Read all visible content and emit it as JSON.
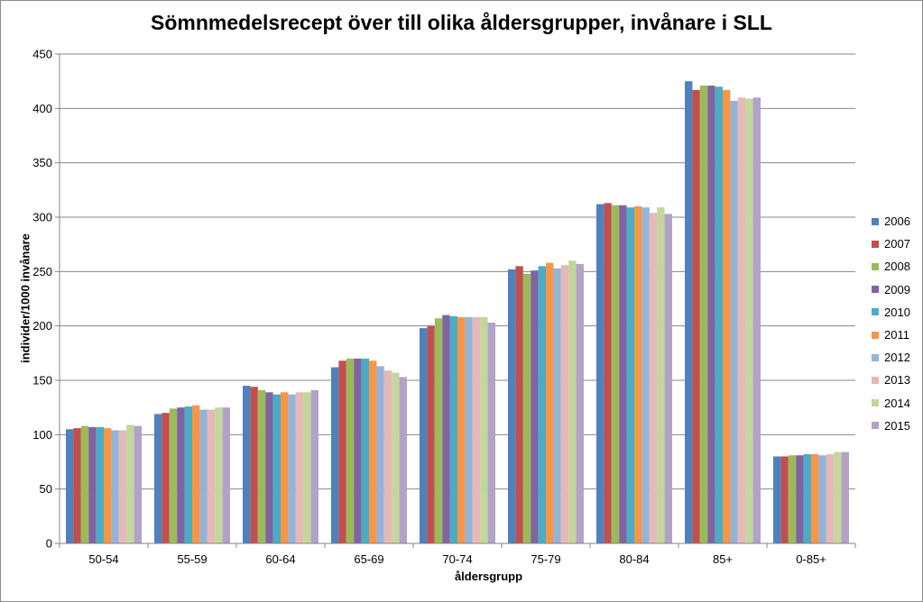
{
  "chart_data": {
    "type": "bar",
    "title": "Sömnmedelsrecept över till olika åldersgrupper, invånare i SLL",
    "xlabel": "åldersgrupp",
    "ylabel": "individer/1000 invånare",
    "ylim": [
      0,
      450
    ],
    "yticks": [
      0,
      50,
      100,
      150,
      200,
      250,
      300,
      350,
      400,
      450
    ],
    "grid": true,
    "legend_position": "right",
    "categories": [
      "50-54",
      "55-59",
      "60-64",
      "65-69",
      "70-74",
      "75-79",
      "80-84",
      "85+",
      "0-85+"
    ],
    "series": [
      {
        "name": "2006",
        "color": "#4F81BD",
        "values": [
          105,
          119,
          145,
          162,
          198,
          252,
          312,
          425,
          80
        ]
      },
      {
        "name": "2007",
        "color": "#C0504D",
        "values": [
          106,
          120,
          144,
          168,
          200,
          255,
          313,
          417,
          80
        ]
      },
      {
        "name": "2008",
        "color": "#9BBB59",
        "values": [
          108,
          124,
          141,
          170,
          207,
          248,
          311,
          421,
          81
        ]
      },
      {
        "name": "2009",
        "color": "#8064A2",
        "values": [
          107,
          125,
          139,
          170,
          210,
          251,
          311,
          421,
          81
        ]
      },
      {
        "name": "2010",
        "color": "#4BACC6",
        "values": [
          107,
          126,
          137,
          170,
          209,
          255,
          309,
          420,
          82
        ]
      },
      {
        "name": "2011",
        "color": "#F79646",
        "values": [
          106,
          127,
          139,
          168,
          208,
          258,
          310,
          417,
          82
        ]
      },
      {
        "name": "2012",
        "color": "#95B3D7",
        "values": [
          104,
          123,
          137,
          163,
          208,
          253,
          309,
          407,
          81
        ]
      },
      {
        "name": "2013",
        "color": "#E6B9B8",
        "values": [
          104,
          123,
          139,
          159,
          208,
          256,
          304,
          410,
          82
        ]
      },
      {
        "name": "2014",
        "color": "#C3D69B",
        "values": [
          109,
          125,
          139,
          157,
          208,
          260,
          309,
          409,
          84
        ]
      },
      {
        "name": "2015",
        "color": "#B2A2C7",
        "values": [
          108,
          125,
          141,
          153,
          203,
          257,
          303,
          410,
          84
        ]
      }
    ]
  }
}
